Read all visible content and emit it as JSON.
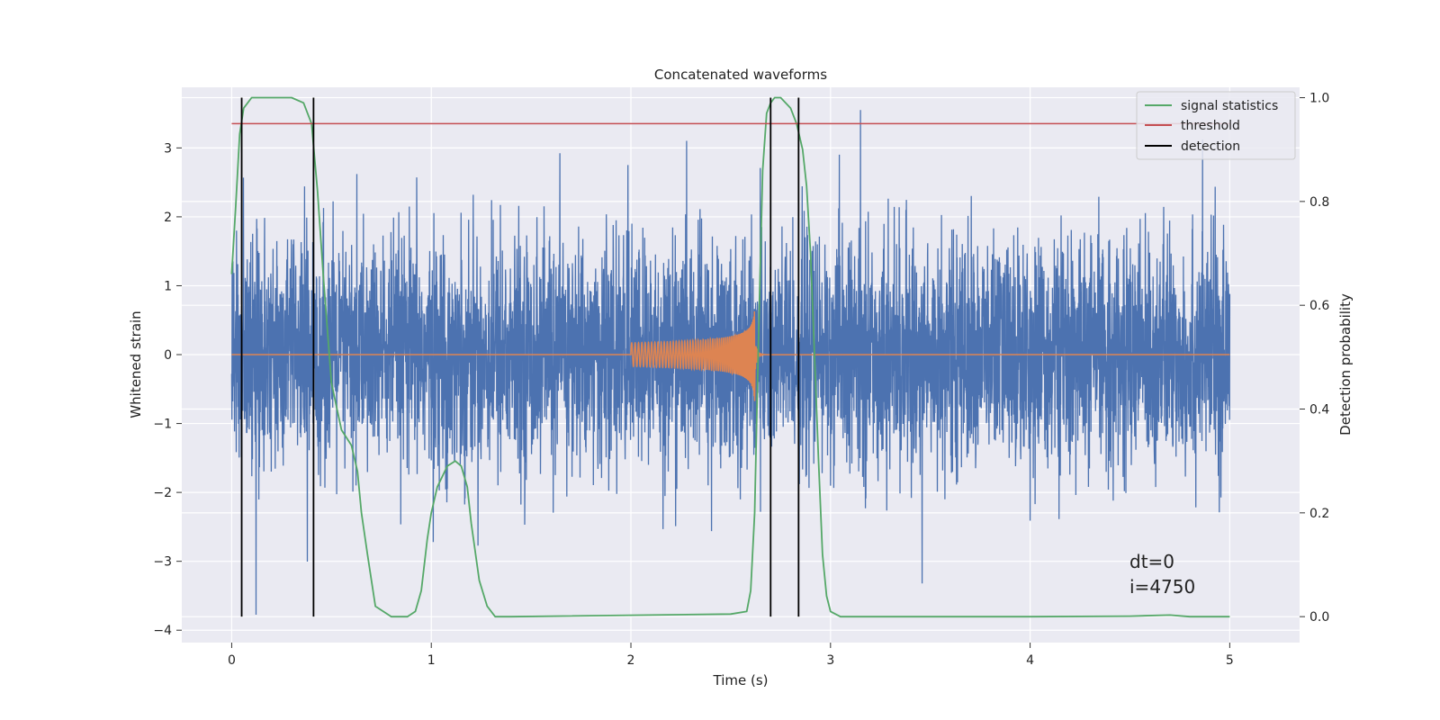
{
  "chart_data": {
    "type": "line",
    "title": "Concatenated waveforms",
    "xlabel": "Time (s)",
    "ylabel_left": "Whitened strain",
    "ylabel_right": "Detection probability",
    "xlim": [
      -0.25,
      5.35
    ],
    "ylim_left": [
      -4.18,
      3.88
    ],
    "ylim_right": [
      -0.05,
      1.02
    ],
    "x_ticks": [
      0,
      1,
      2,
      3,
      4,
      5
    ],
    "y_ticks_left": [
      -4,
      -3,
      -2,
      -1,
      0,
      1,
      2,
      3
    ],
    "y_ticks_right": [
      0.0,
      0.2,
      0.4,
      0.6,
      0.8,
      1.0
    ],
    "y_tick_labels_left": [
      "−4",
      "−3",
      "−2",
      "−1",
      "0",
      "1",
      "2",
      "3"
    ],
    "y_tick_labels_right": [
      "0.0",
      "0.2",
      "0.4",
      "0.6",
      "0.8",
      "1.0"
    ],
    "grid": true,
    "legend_placement": "top-right",
    "series": [
      {
        "name": "",
        "kind": "noise-strain",
        "axis": "left",
        "color": "#4c72b0",
        "x_range": [
          0,
          5
        ],
        "y_range": [
          -4.0,
          3.55
        ]
      },
      {
        "name": "",
        "kind": "injected-chirp",
        "axis": "left",
        "color": "#dd8452",
        "chirp_start": 2.0,
        "chirp_end": 2.62,
        "chirp_peak": 0.7,
        "chirp_trough": -1.0
      },
      {
        "name": "signal statistics",
        "axis": "right",
        "color": "#55a868",
        "x": [
          0,
          0.02,
          0.04,
          0.06,
          0.08,
          0.1,
          0.12,
          0.15,
          0.2,
          0.3,
          0.36,
          0.38,
          0.4,
          0.43,
          0.46,
          0.5,
          0.55,
          0.6,
          0.63,
          0.65,
          0.68,
          0.72,
          0.8,
          0.88,
          0.92,
          0.95,
          0.98,
          1.0,
          1.03,
          1.08,
          1.12,
          1.15,
          1.18,
          1.2,
          1.24,
          1.28,
          1.32,
          1.4,
          2.5,
          2.58,
          2.6,
          2.62,
          2.64,
          2.66,
          2.68,
          2.7,
          2.72,
          2.75,
          2.8,
          2.83,
          2.86,
          2.88,
          2.9,
          2.92,
          2.94,
          2.96,
          2.98,
          3.0,
          3.05,
          4.0,
          4.5,
          4.7,
          4.8,
          5.0
        ],
        "y": [
          0.66,
          0.79,
          0.93,
          0.98,
          0.99,
          1.0,
          1.0,
          1.0,
          1.0,
          1.0,
          0.99,
          0.97,
          0.95,
          0.82,
          0.65,
          0.45,
          0.36,
          0.33,
          0.28,
          0.2,
          0.12,
          0.02,
          0.0,
          0.0,
          0.01,
          0.05,
          0.15,
          0.2,
          0.25,
          0.29,
          0.3,
          0.29,
          0.25,
          0.18,
          0.07,
          0.02,
          0.0,
          0.0,
          0.005,
          0.01,
          0.05,
          0.2,
          0.55,
          0.86,
          0.97,
          0.99,
          1.0,
          1.0,
          0.98,
          0.95,
          0.9,
          0.83,
          0.7,
          0.5,
          0.3,
          0.12,
          0.04,
          0.01,
          0.0,
          0.0,
          0.001,
          0.003,
          0.0,
          0.0
        ]
      },
      {
        "name": "threshold",
        "axis": "right",
        "color": "#c44e52",
        "x": [
          0,
          5
        ],
        "y": [
          0.95,
          0.95
        ]
      },
      {
        "name": "detection",
        "axis": "right",
        "color": "#000000",
        "vlines": [
          0.05,
          0.41,
          2.7,
          2.84
        ],
        "vline_ymin": 0.0,
        "vline_ymax": 1.0
      }
    ],
    "annotations": [
      "dt=0",
      "i=4750"
    ]
  }
}
